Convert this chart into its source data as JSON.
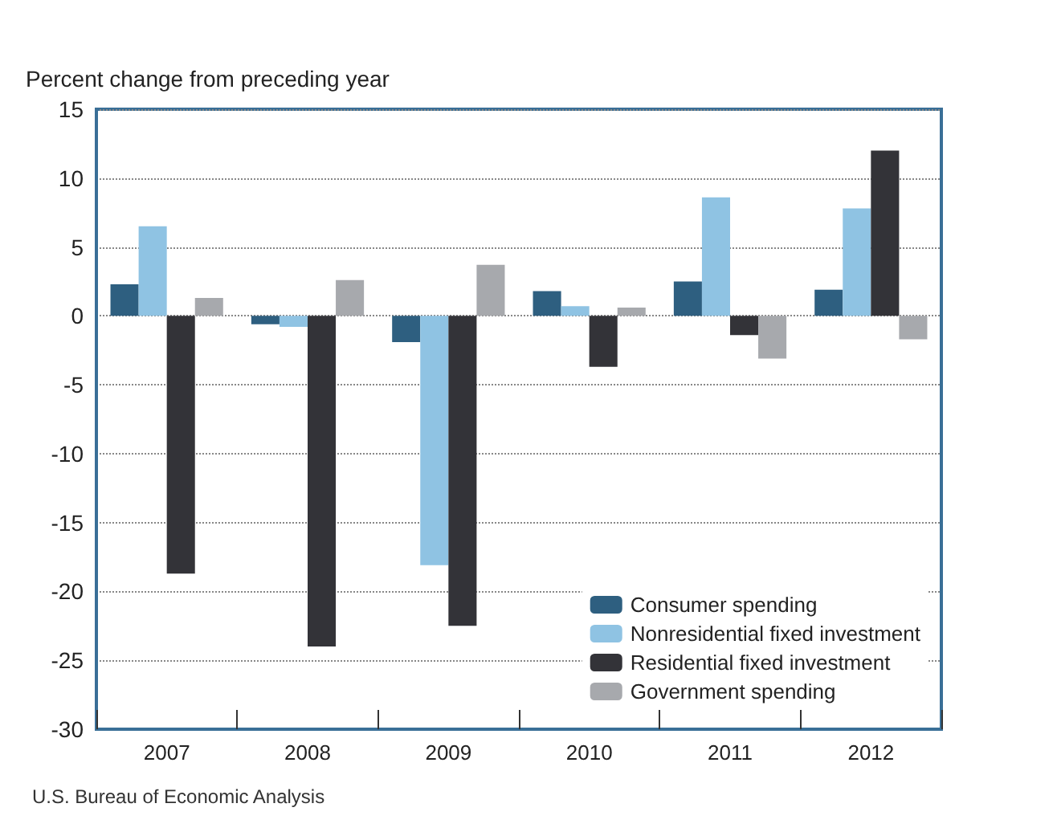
{
  "chart_data": {
    "type": "bar",
    "ylabel": "Percent change from preceding year",
    "categories": [
      "2007",
      "2008",
      "2009",
      "2010",
      "2011",
      "2012"
    ],
    "series": [
      {
        "name": "Consumer spending",
        "color": "#2e5f80",
        "values": [
          2.3,
          -0.6,
          -1.9,
          1.8,
          2.5,
          1.9
        ]
      },
      {
        "name": "Nonresidential fixed investment",
        "color": "#8fc3e3",
        "values": [
          6.5,
          -0.8,
          -18.1,
          0.7,
          8.6,
          7.8
        ]
      },
      {
        "name": "Residential fixed investment",
        "color": "#333338",
        "values": [
          -18.7,
          -24,
          -22.5,
          -3.7,
          -1.4,
          12
        ]
      },
      {
        "name": "Government spending",
        "color": "#a7a9ad",
        "values": [
          1.3,
          2.6,
          3.7,
          0.6,
          -3.1,
          -1.7
        ]
      }
    ],
    "ylim": [
      -30,
      15
    ],
    "yticks": [
      -30,
      -25,
      -20,
      -15,
      -10,
      -5,
      0,
      5,
      10,
      15
    ],
    "grid": "y",
    "legend": "bottom right",
    "annotations": [
      "U.S. Bureau of Economic Analysis"
    ]
  }
}
